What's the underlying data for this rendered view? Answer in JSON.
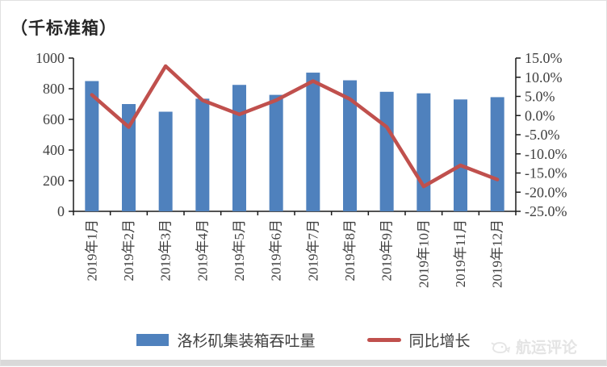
{
  "title": {
    "unit_label": "（千标准箱）"
  },
  "chart_data": {
    "type": "bar",
    "subtype": "bar+line combo, dual axis",
    "categories": [
      "2019年1月",
      "2019年2月",
      "2019年3月",
      "2019年4月",
      "2019年5月",
      "2019年6月",
      "2019年7月",
      "2019年8月",
      "2019年9月",
      "2019年10月",
      "2019年11月",
      "2019年12月"
    ],
    "series": [
      {
        "name": "洛杉矶集装箱吞吐量",
        "type": "bar",
        "axis": "left",
        "color": "#4F81BD",
        "values": [
          850,
          700,
          650,
          735,
          825,
          760,
          905,
          855,
          780,
          770,
          730,
          745
        ]
      },
      {
        "name": "同比增长",
        "type": "line",
        "axis": "right",
        "color": "#C0504D",
        "values": [
          5.4,
          -3.0,
          12.9,
          4.0,
          0.3,
          4.0,
          9.0,
          4.3,
          -3.0,
          -18.5,
          -13.0,
          -16.7
        ]
      }
    ],
    "title": "（千标准箱）",
    "xlabel": "",
    "ylabel_left": "千标准箱",
    "ylabel_right": "同比增长(%)",
    "left_axis": {
      "min": 0,
      "max": 1000,
      "step": 200,
      "labels": [
        "0",
        "200",
        "400",
        "600",
        "800",
        "1000"
      ]
    },
    "right_axis": {
      "min": -25,
      "max": 15,
      "step": 5,
      "labels_top_to_bottom": [
        "15.0%",
        "10.0%",
        "5.0%",
        "0.0%",
        "-5.0%",
        "-10.0%",
        "-15.0%",
        "-20.0%",
        "-25.0%"
      ]
    },
    "grid": false,
    "legend_position": "bottom"
  },
  "legend": {
    "bar_label": "洛杉矶集装箱吞吐量",
    "line_label": "同比增长"
  },
  "watermark": {
    "text": "航运评论",
    "icon": "whale-logo-icon"
  },
  "colors": {
    "bar": "#4F81BD",
    "line": "#C0504D",
    "axis": "#1a1a1a",
    "tick_text": "#3f3f3f",
    "watermark": "#e4e4e4",
    "strip": "#d9d9d9"
  }
}
